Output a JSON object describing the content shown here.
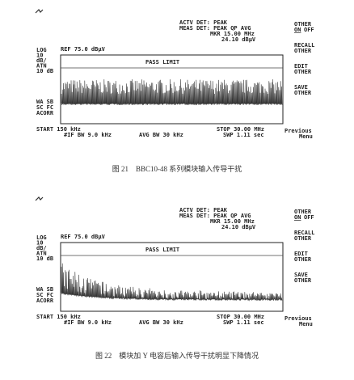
{
  "figures": [
    {
      "screen": {
        "header": [
          "ACTV DET: PEAK",
          "MEAS DET: PEAK QP AVG",
          "MKR 15.00 MHz",
          "24.10 dBμV"
        ],
        "scale": [
          "LOG",
          "10",
          "dB/",
          "ATN",
          "10 dB"
        ],
        "ref": "REF 75.0 dBμV",
        "limit": "PASS LIMIT",
        "modes": [
          "WA SB",
          "SC FC",
          "ACORR"
        ],
        "footer_left": [
          "START 150 kHz",
          "#IF BW 9.0 kHz"
        ],
        "footer_mid": "AVG BW 30 kHz",
        "footer_right": [
          "STOP 30.00 MHz",
          "SWP 1.11 sec"
        ],
        "toggle": {
          "label": "OTHER",
          "on": "ON",
          "off": "OFF"
        },
        "keys": [
          [
            "RECALL",
            "OTHER"
          ],
          [
            "EDIT",
            "OTHER"
          ],
          [
            "SAVE",
            "OTHER"
          ],
          [
            "Previous",
            "Menu"
          ]
        ]
      },
      "caption": "图 21　BBC10-48 系列模块输入传导干扰"
    },
    {
      "screen": {
        "header": [
          "ACTV DET: PEAK",
          "MEAS DET: PEAK QP AVG",
          "MKR 15.00 MHz",
          "24.10 dBμV"
        ],
        "scale": [
          "LOG",
          "10",
          "dB/",
          "ATN",
          "10 dB"
        ],
        "ref": "REF 75.0 dBμV",
        "limit": "PASS LIMIT",
        "modes": [
          "WA SB",
          "SC FC",
          "ACORR"
        ],
        "footer_left": [
          "START 150 kHz",
          "#IF BW 9.0 kHz"
        ],
        "footer_mid": "AVG BW 30 kHz",
        "footer_right": [
          "STOP 30.00 MHz",
          "SWP 1.11 sec"
        ],
        "toggle": {
          "label": "OTHER",
          "on": "ON",
          "off": "OFF"
        },
        "keys": [
          [
            "RECALL",
            "OTHER"
          ],
          [
            "EDIT",
            "OTHER"
          ],
          [
            "SAVE",
            "OTHER"
          ],
          [
            "Previous",
            "Menu"
          ]
        ]
      },
      "caption": "图 22　模块加 Y 电容后输入传导干扰明显下降情况"
    }
  ]
}
